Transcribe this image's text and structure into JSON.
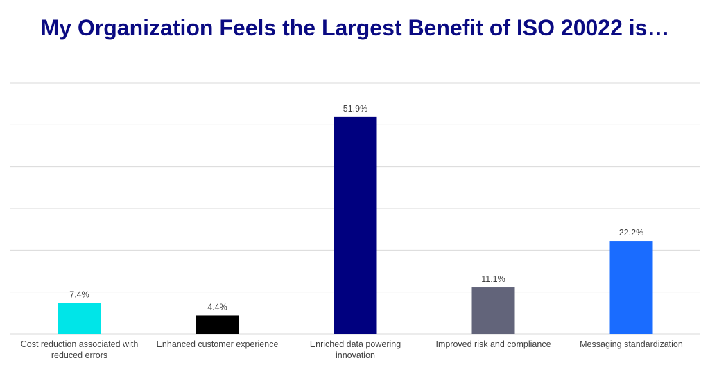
{
  "chart_data": {
    "type": "bar",
    "title": "My Organization Feels the Largest Benefit of ISO 20022 is…",
    "categories": [
      "Cost reduction associated with reduced errors",
      "Enhanced customer experience",
      "Enriched data powering innovation",
      "Improved risk and compliance",
      "Messaging standardization"
    ],
    "category_lines": [
      [
        "Cost reduction associated with",
        "reduced errors"
      ],
      [
        "Enhanced customer experience"
      ],
      [
        "Enriched data powering",
        "innovation"
      ],
      [
        "Improved risk and compliance"
      ],
      [
        "Messaging standardization"
      ]
    ],
    "values": [
      7.4,
      4.4,
      51.9,
      11.1,
      22.2
    ],
    "value_labels": [
      "7.4%",
      "4.4%",
      "51.9%",
      "11.1%",
      "22.2%"
    ],
    "colors": [
      "#00e5e8",
      "#000000",
      "#00007f",
      "#62647a",
      "#1a6cff"
    ],
    "xlabel": "",
    "ylabel": "",
    "ylim": [
      0,
      60
    ],
    "grid": true,
    "legend": "none"
  },
  "colors": {
    "title": "#0a0a82",
    "gridline": "#d9d9d9",
    "text": "#404040"
  }
}
